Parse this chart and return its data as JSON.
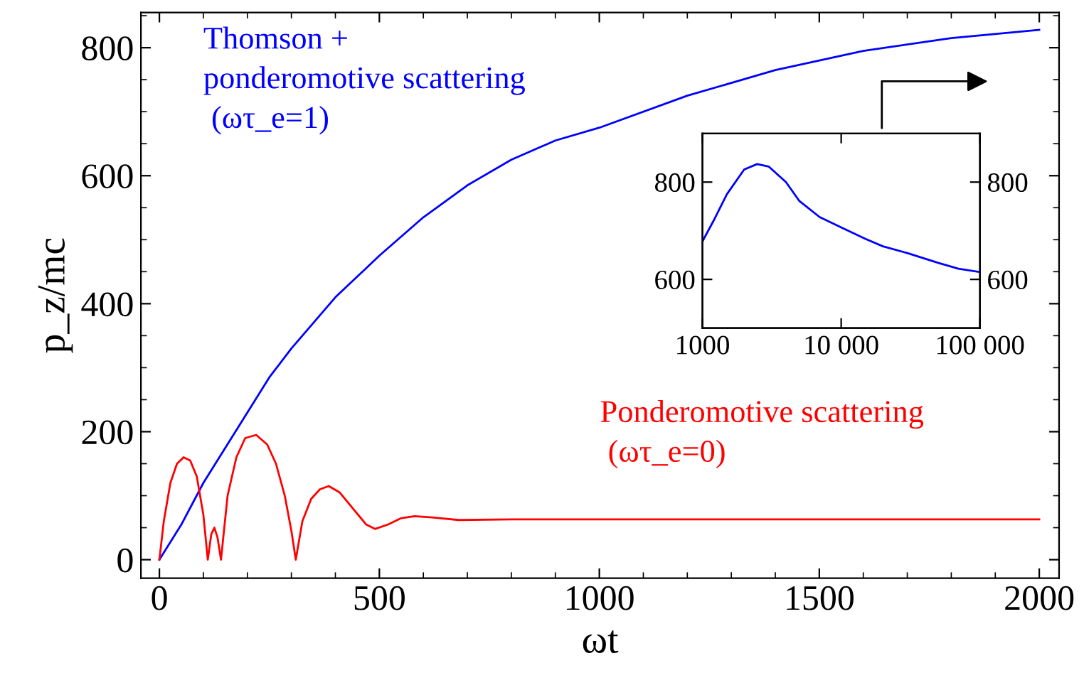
{
  "chart_data": [
    {
      "type": "line",
      "xlabel": "ωt",
      "ylabel": "p_z/mc",
      "xlim": [
        -42,
        2045
      ],
      "ylim": [
        -29,
        855
      ],
      "xticks": [
        0,
        500,
        1000,
        1500,
        2000
      ],
      "yticks": [
        0,
        200,
        400,
        600,
        800
      ],
      "grid": false,
      "legend": false,
      "series": [
        {
          "name": "Thomson +\nponderomotive scattering\n (ωτ_e=1)",
          "color": "#0000ff",
          "x": [
            0,
            50,
            100,
            150,
            200,
            250,
            300,
            400,
            500,
            600,
            700,
            800,
            900,
            1000,
            1200,
            1400,
            1600,
            1800,
            2000
          ],
          "values": [
            0,
            55,
            120,
            175,
            230,
            285,
            330,
            410,
            475,
            535,
            585,
            625,
            655,
            675,
            725,
            765,
            795,
            815,
            828
          ]
        },
        {
          "name": "Ponderomotive scattering\n (ωτ_e=0)",
          "color": "#ff0000",
          "x": [
            0,
            10,
            25,
            40,
            55,
            70,
            85,
            100,
            110,
            118,
            125,
            132,
            140,
            155,
            175,
            195,
            220,
            245,
            265,
            285,
            300,
            310,
            325,
            345,
            365,
            385,
            410,
            440,
            470,
            490,
            520,
            550,
            580,
            620,
            680,
            800,
            1000,
            1500,
            2000
          ],
          "values": [
            0,
            60,
            120,
            150,
            160,
            155,
            130,
            70,
            0,
            40,
            50,
            35,
            0,
            100,
            160,
            190,
            195,
            180,
            150,
            100,
            45,
            0,
            60,
            95,
            110,
            115,
            105,
            80,
            55,
            48,
            55,
            65,
            68,
            66,
            62,
            63,
            63,
            63,
            63
          ]
        }
      ]
    },
    {
      "type": "line",
      "log": "x",
      "xlim": [
        1000,
        100000
      ],
      "ylim": [
        500,
        900
      ],
      "y2lim": [
        500,
        900
      ],
      "xticks": [
        {
          "value": 1000,
          "label": "1000"
        },
        {
          "value": 10000,
          "label": "10 000"
        },
        {
          "value": 100000,
          "label": "100 000"
        }
      ],
      "yticks": [
        600,
        800
      ],
      "y2ticks": [
        600,
        800
      ],
      "grid": false,
      "legend": false,
      "series": [
        {
          "color": "#0000ff",
          "x": [
            1000,
            1200,
            1500,
            2000,
            2480,
            3000,
            4000,
            5000,
            7000,
            10000,
            15000,
            20000,
            30000,
            50000,
            70000,
            100000
          ],
          "values": [
            678,
            720,
            775,
            826,
            837,
            832,
            800,
            761,
            728,
            707,
            683,
            668,
            654,
            634,
            622,
            615
          ]
        }
      ]
    }
  ]
}
